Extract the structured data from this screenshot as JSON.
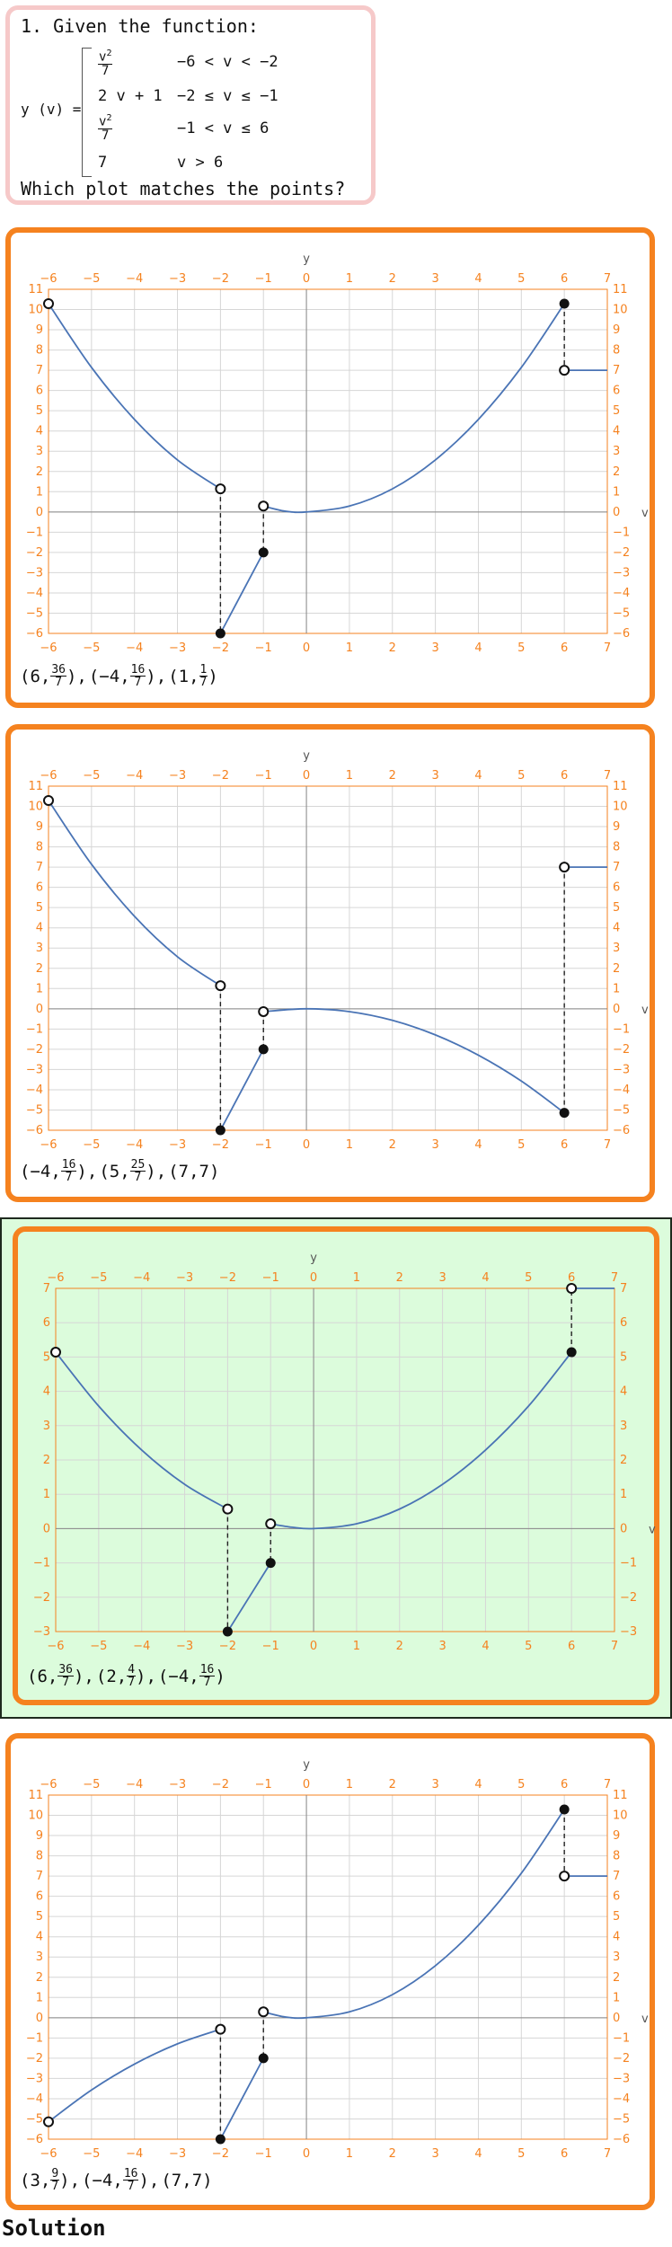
{
  "question": {
    "number_title": "1. Given the function:",
    "lhs": "y (v) =",
    "cases": [
      {
        "expr_num": "v",
        "expr_exp": "2",
        "expr_den": "7",
        "cond": "−6 < v < −2"
      },
      {
        "expr": "2 v + 1",
        "cond": "−2 ≤ v ≤ −1"
      },
      {
        "expr_num": "v",
        "expr_exp": "2",
        "expr_den": "7",
        "cond": "−1 < v ≤ 6"
      },
      {
        "expr": "7",
        "cond": "v > 6"
      }
    ],
    "prompt": "Which plot matches the points?"
  },
  "footer": {
    "solution_label": "Solution"
  },
  "axis_labels": {
    "x": "v",
    "y": "y"
  },
  "colors": {
    "orange": "#f5821f",
    "curve": "#4a74b5",
    "correct_bg": "#dcfcdc",
    "question_border": "#f6c9c9"
  },
  "options": [
    {
      "points_text": [
        {
          "a": "6",
          "num": "36",
          "den": "7"
        },
        {
          "a": "−4",
          "num": "16",
          "den": "7"
        },
        {
          "a": "1",
          "num": "1",
          "den": "7"
        }
      ],
      "chart_data": {
        "type": "line",
        "xlim": [
          -6,
          7
        ],
        "ylim": [
          -6,
          11
        ],
        "x_ticks": [
          -6,
          -5,
          -4,
          -3,
          -2,
          -1,
          0,
          1,
          2,
          3,
          4,
          5,
          6,
          7
        ],
        "y_ticks": [
          -6,
          -5,
          -4,
          -3,
          -2,
          -1,
          0,
          1,
          2,
          3,
          4,
          5,
          6,
          7,
          8,
          9,
          10,
          11
        ],
        "series": [
          {
            "x": [
              -6,
              -5,
              -4,
              -3,
              -2
            ],
            "y": [
              10.29,
              7.14,
              4.57,
              2.57,
              1.14
            ]
          },
          {
            "x": [
              -2,
              -1
            ],
            "y": [
              -6,
              -2
            ]
          },
          {
            "x": [
              -1,
              -0.5,
              0,
              1,
              2,
              3,
              4,
              5,
              6
            ],
            "y": [
              0.29,
              0.04,
              0,
              0.29,
              1.14,
              2.57,
              4.57,
              7.14,
              10.29
            ]
          },
          {
            "x": [
              6,
              7
            ],
            "y": [
              7,
              7
            ]
          }
        ],
        "open_points": [
          [
            -6,
            10.29
          ],
          [
            -2,
            1.14
          ],
          [
            -1,
            0.29
          ],
          [
            6,
            7
          ]
        ],
        "closed_points": [
          [
            -2,
            -6
          ],
          [
            -1,
            -2
          ],
          [
            6,
            10.29
          ]
        ],
        "dashed": [
          [
            [
              -2,
              1.14
            ],
            [
              -2,
              -6
            ]
          ],
          [
            [
              -1,
              0.29
            ],
            [
              -1,
              -2
            ]
          ],
          [
            [
              6,
              10.29
            ],
            [
              6,
              7
            ]
          ]
        ]
      }
    },
    {
      "points_text": [
        {
          "a": "−4",
          "num": "16",
          "den": "7"
        },
        {
          "a": "5",
          "num": "25",
          "den": "7"
        },
        {
          "a": "7",
          "plain": "7"
        }
      ],
      "chart_data": {
        "type": "line",
        "xlim": [
          -6,
          7
        ],
        "ylim": [
          -6,
          11
        ],
        "x_ticks": [
          -6,
          -5,
          -4,
          -3,
          -2,
          -1,
          0,
          1,
          2,
          3,
          4,
          5,
          6,
          7
        ],
        "y_ticks": [
          -6,
          -5,
          -4,
          -3,
          -2,
          -1,
          0,
          1,
          2,
          3,
          4,
          5,
          6,
          7,
          8,
          9,
          10,
          11
        ],
        "series": [
          {
            "x": [
              -6,
              -5,
              -4,
              -3,
              -2
            ],
            "y": [
              10.29,
              7.14,
              4.57,
              2.57,
              1.14
            ]
          },
          {
            "x": [
              -2,
              -1
            ],
            "y": [
              -6,
              -2
            ]
          },
          {
            "x": [
              -1,
              0,
              1,
              2,
              3,
              4,
              5,
              6
            ],
            "y": [
              -0.14,
              0,
              -0.14,
              -0.57,
              -1.29,
              -2.29,
              -3.57,
              -5.14
            ]
          },
          {
            "x": [
              6,
              7
            ],
            "y": [
              7,
              7
            ]
          }
        ],
        "open_points": [
          [
            -6,
            10.29
          ],
          [
            -2,
            1.14
          ],
          [
            -1,
            -0.14
          ],
          [
            6,
            7
          ]
        ],
        "closed_points": [
          [
            -2,
            -6
          ],
          [
            -1,
            -2
          ],
          [
            6,
            -5.14
          ]
        ],
        "dashed": [
          [
            [
              -2,
              1.14
            ],
            [
              -2,
              -6
            ]
          ],
          [
            [
              -1,
              -0.14
            ],
            [
              -1,
              -2
            ]
          ],
          [
            [
              6,
              -5.14
            ],
            [
              6,
              7
            ]
          ]
        ]
      }
    },
    {
      "points_text": [
        {
          "a": "6",
          "num": "36",
          "den": "7"
        },
        {
          "a": "2",
          "num": "4",
          "den": "7"
        },
        {
          "a": "−4",
          "num": "16",
          "den": "7"
        }
      ],
      "chart_data": {
        "type": "line",
        "xlim": [
          -6,
          7
        ],
        "ylim": [
          -3,
          7
        ],
        "x_ticks": [
          -6,
          -5,
          -4,
          -3,
          -2,
          -1,
          0,
          1,
          2,
          3,
          4,
          5,
          6,
          7
        ],
        "y_ticks": [
          -3,
          -2,
          -1,
          0,
          1,
          2,
          3,
          4,
          5,
          6,
          7
        ],
        "series": [
          {
            "x": [
              -6,
              -5,
              -4,
              -3,
              -2
            ],
            "y": [
              5.14,
              3.57,
              2.29,
              1.29,
              0.57
            ]
          },
          {
            "x": [
              -2,
              -1
            ],
            "y": [
              -3,
              -1
            ]
          },
          {
            "x": [
              -1,
              -0.5,
              0,
              1,
              2,
              3,
              4,
              5,
              6
            ],
            "y": [
              0.14,
              0.04,
              0,
              0.14,
              0.57,
              1.29,
              2.29,
              3.57,
              5.14
            ]
          },
          {
            "x": [
              6,
              7
            ],
            "y": [
              7,
              7
            ]
          }
        ],
        "open_points": [
          [
            -6,
            5.14
          ],
          [
            -2,
            0.57
          ],
          [
            -1,
            0.14
          ],
          [
            6,
            7
          ]
        ],
        "closed_points": [
          [
            -2,
            -3
          ],
          [
            -1,
            -1
          ],
          [
            6,
            5.14
          ]
        ],
        "dashed": [
          [
            [
              -2,
              0.57
            ],
            [
              -2,
              -3
            ]
          ],
          [
            [
              -1,
              0.14
            ],
            [
              -1,
              -1
            ]
          ],
          [
            [
              6,
              5.14
            ],
            [
              6,
              7
            ]
          ]
        ]
      }
    },
    {
      "points_text": [
        {
          "a": "3",
          "num": "9",
          "den": "7"
        },
        {
          "a": "−4",
          "num": "16",
          "den": "7"
        },
        {
          "a": "7",
          "plain": "7"
        }
      ],
      "chart_data": {
        "type": "line",
        "xlim": [
          -6,
          7
        ],
        "ylim": [
          -6,
          11
        ],
        "x_ticks": [
          -6,
          -5,
          -4,
          -3,
          -2,
          -1,
          0,
          1,
          2,
          3,
          4,
          5,
          6,
          7
        ],
        "y_ticks": [
          -6,
          -5,
          -4,
          -3,
          -2,
          -1,
          0,
          1,
          2,
          3,
          4,
          5,
          6,
          7,
          8,
          9,
          10,
          11
        ],
        "series": [
          {
            "x": [
              -6,
              -5,
              -4,
              -3,
              -2
            ],
            "y": [
              -5.14,
              -3.57,
              -2.29,
              -1.29,
              -0.57
            ]
          },
          {
            "x": [
              -2,
              -1
            ],
            "y": [
              -6,
              -2
            ]
          },
          {
            "x": [
              -1,
              -0.5,
              0,
              1,
              2,
              3,
              4,
              5,
              6
            ],
            "y": [
              0.29,
              0.04,
              0,
              0.29,
              1.14,
              2.57,
              4.57,
              7.14,
              10.29
            ]
          },
          {
            "x": [
              6,
              7
            ],
            "y": [
              7,
              7
            ]
          }
        ],
        "open_points": [
          [
            -6,
            -5.14
          ],
          [
            -2,
            -0.57
          ],
          [
            -1,
            0.29
          ],
          [
            6,
            7
          ]
        ],
        "closed_points": [
          [
            -2,
            -6
          ],
          [
            -1,
            -2
          ],
          [
            6,
            10.29
          ]
        ],
        "dashed": [
          [
            [
              -2,
              -0.57
            ],
            [
              -2,
              -6
            ]
          ],
          [
            [
              -1,
              0.29
            ],
            [
              -1,
              -2
            ]
          ],
          [
            [
              6,
              10.29
            ],
            [
              6,
              7
            ]
          ]
        ]
      }
    }
  ]
}
